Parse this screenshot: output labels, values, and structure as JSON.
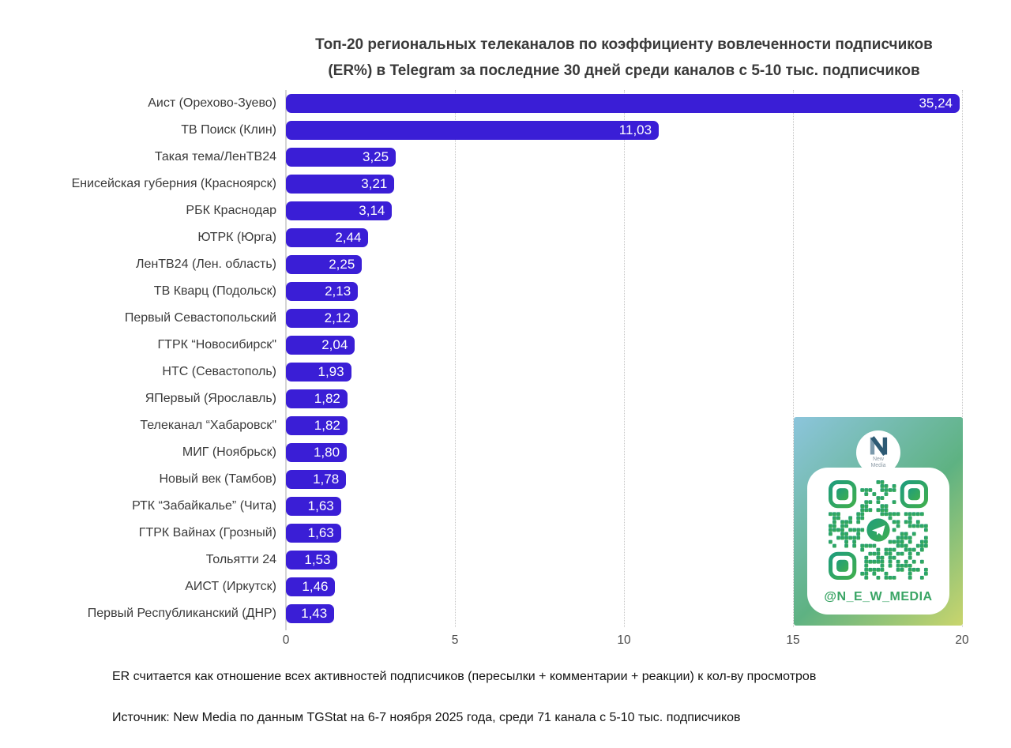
{
  "chart_data": {
    "type": "bar",
    "orientation": "horizontal",
    "title": "Топ-20 региональных телеканалов по коэффициенту вовлеченности подписчиков (ER%) в Telegram за последние 30 дней среди каналов с 5-10 тыс. подписчиков",
    "title_line1": "Топ-20 региональных телеканалов по коэффициенту вовлеченности подписчиков",
    "title_line2": "(ER%) в Telegram за последние 30 дней среди каналов с 5-10 тыс. подписчиков",
    "categories": [
      "Аист (Орехово-Зуево)",
      "ТВ Поиск (Клин)",
      "Такая тема/ЛенТВ24",
      "Енисейская губерния (Красноярск)",
      "РБК Краснодар",
      "ЮТРК (Юрга)",
      "ЛенТВ24 (Лен. область)",
      "ТВ Кварц (Подольск)",
      "Первый Севастопольский",
      "ГТРК “Новосибирск\"",
      "НТС (Севастополь)",
      "ЯПервый (Ярославль)",
      "Телеканал “Хабаровск\"",
      "МИГ (Ноябрьск)",
      "Новый век (Тамбов)",
      "РТК “Забайкалье” (Чита)",
      "ГТРК Вайнах (Грозный)",
      "Тольятти 24",
      "АИСТ (Иркутск)",
      "Первый Республиканский (ДНР)"
    ],
    "values": [
      35.24,
      11.03,
      3.25,
      3.21,
      3.14,
      2.44,
      2.25,
      2.13,
      2.12,
      2.04,
      1.93,
      1.82,
      1.82,
      1.8,
      1.78,
      1.63,
      1.63,
      1.53,
      1.46,
      1.43
    ],
    "value_labels": [
      "35,24",
      "11,03",
      "3,25",
      "3,21",
      "3,14",
      "2,44",
      "2,25",
      "2,13",
      "2,12",
      "2,04",
      "1,93",
      "1,82",
      "1,82",
      "1,80",
      "1,78",
      "1,63",
      "1,63",
      "1,53",
      "1,46",
      "1,43"
    ],
    "xlabel": "",
    "ylabel": "",
    "xlim": [
      0,
      20
    ],
    "x_ticks": [
      "0",
      "5",
      "10",
      "15",
      "20"
    ],
    "grid": "vertical dotted lines at 5, 10, 15, 20",
    "legend": "none",
    "bar_color": "#3a1ed6",
    "value_label_color": "#ffffff"
  },
  "footnotes": {
    "method": "ER считается как отношение всех активностей подписчиков (пересылки + комментарии + реакции) к кол-ву просмотров",
    "source": "Источник: New Media по данным TGStat на 6-7 ноября 2025 года, среди 71 канала с 5-10 тыс. подписчиков"
  },
  "qr_badge": {
    "handle": "@N_E_W_MEDIA",
    "logo_text_line1": "New",
    "logo_text_line2": "Media",
    "center_icon": "telegram-icon",
    "colors": {
      "gradient_start": "#8cc5dc",
      "gradient_mid": "#5eb282",
      "gradient_end": "#c9d56d",
      "qr_green_dark": "#1f9d7c",
      "qr_green_light": "#3fae4e",
      "handle_green": "#3aa565",
      "logo_light": "#7b99ab",
      "logo_dark": "#2d5a74"
    }
  }
}
